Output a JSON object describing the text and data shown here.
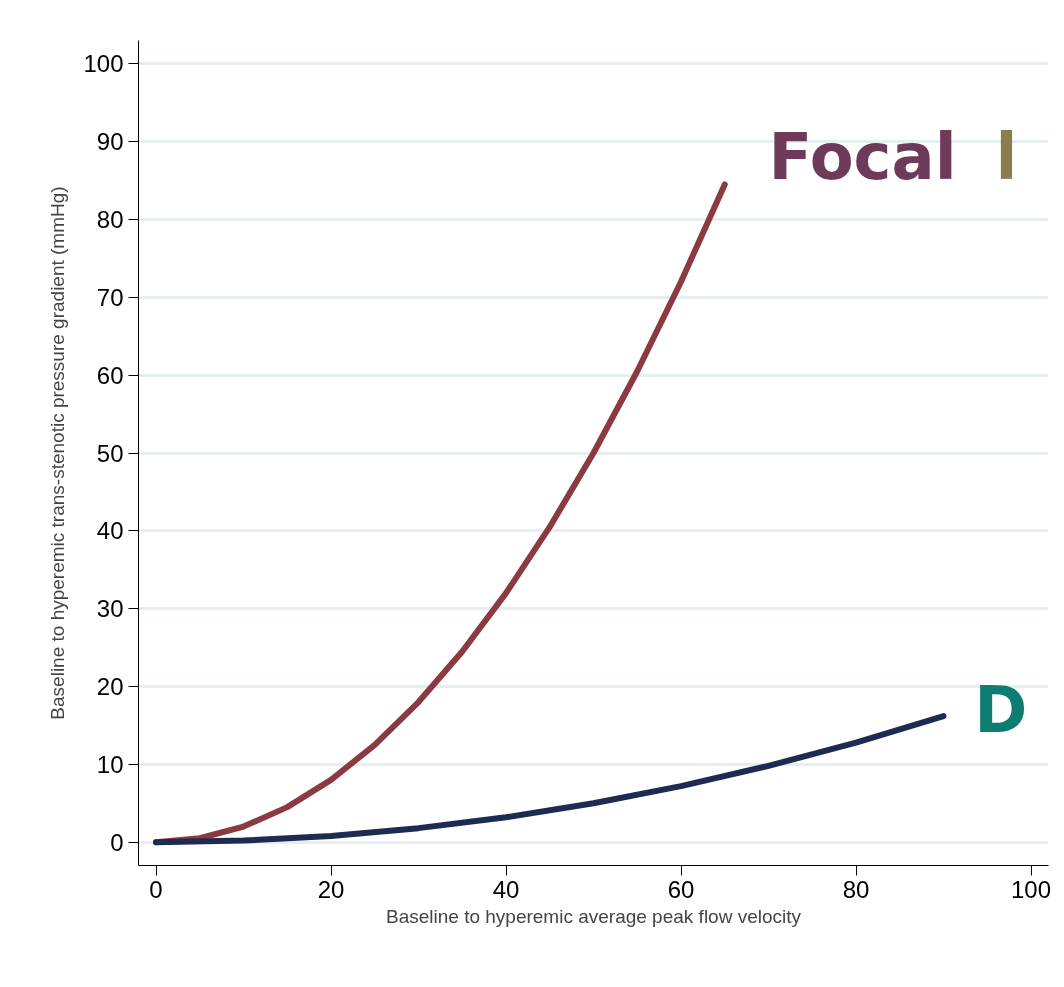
{
  "chart_data": {
    "type": "line",
    "xlabel": "Baseline to hyperemic average peak flow velocity",
    "ylabel": "Baseline to hyperemic trans-stenotic pressure gradient (mmHg)",
    "series": [
      {
        "color": "#8b3a42",
        "x": [
          0,
          5,
          10,
          15,
          20,
          25,
          30,
          35,
          40,
          45,
          50,
          55,
          60,
          65
        ],
        "values": [
          0,
          0.5,
          2,
          4.5,
          8,
          12.5,
          18,
          24.5,
          32,
          40.5,
          50,
          60.5,
          72,
          84.5
        ]
      },
      {
        "color": "#1e2b50",
        "x": [
          0,
          10,
          20,
          30,
          40,
          50,
          60,
          70,
          80,
          90
        ],
        "values": [
          0,
          0.2,
          0.8,
          1.8,
          3.2,
          5,
          7.2,
          9.8,
          12.8,
          16.2
        ]
      }
    ],
    "annotations": [
      "Focal l",
      "D"
    ],
    "xlim": [
      -2,
      102
    ],
    "ylim": [
      -3,
      103
    ],
    "xticks": [
      0,
      20,
      40,
      60,
      80,
      100
    ],
    "yticks": [
      0,
      10,
      20,
      30,
      40,
      50,
      60,
      70,
      80,
      90,
      100
    ],
    "grid": "y",
    "marker": "none",
    "line_style": "solid"
  }
}
